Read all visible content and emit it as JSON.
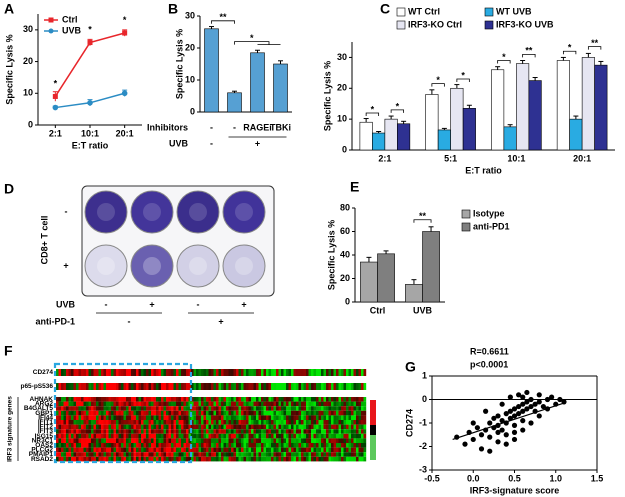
{
  "chart_data": [
    {
      "type": "line",
      "panel": "A",
      "x_label": "E:T ratio",
      "y_label": "Specific Lysis %",
      "categories": [
        "2:1",
        "10:1",
        "20:1"
      ],
      "ylim": [
        0,
        35
      ],
      "yticks": [
        0,
        10,
        20,
        30
      ],
      "series": [
        {
          "name": "Ctrl",
          "color": "#e8262b",
          "marker": "square",
          "values": [
            9,
            26,
            29
          ],
          "errors": [
            1.5,
            1,
            1
          ]
        },
        {
          "name": "UVB",
          "color": "#2b8cc4",
          "marker": "circle",
          "values": [
            5.5,
            7,
            10
          ],
          "errors": [
            0.5,
            1,
            1
          ]
        }
      ],
      "annotations": [
        "*",
        "*",
        "*"
      ]
    },
    {
      "type": "bar",
      "panel": "B",
      "y_label": "Specific Lysis %",
      "color": "#56a0d3",
      "values": [
        26,
        6,
        18.5,
        15
      ],
      "errors": [
        0.7,
        0.5,
        0.8,
        1
      ],
      "ylim": [
        0,
        30
      ],
      "yticks": [
        0,
        10,
        20,
        30
      ],
      "conditions": [
        {
          "label": "Inhibitors",
          "values": [
            "-",
            "-",
            "RAGEi",
            "TBKi"
          ]
        },
        {
          "label": "UVB",
          "values": [
            "-",
            "+"
          ]
        }
      ],
      "annotations": [
        "**",
        "*"
      ]
    },
    {
      "type": "bar",
      "panel": "C",
      "x_label": "E:T ratio",
      "y_label": "Specific Lysis %",
      "categories": [
        "2:1",
        "5:1",
        "10:1",
        "20:1"
      ],
      "ylim": [
        0,
        35
      ],
      "yticks": [
        0,
        10,
        20,
        30
      ],
      "series": [
        {
          "name": "WT Ctrl",
          "color": "#ffffff",
          "values": [
            9,
            18,
            26,
            29
          ],
          "errors": [
            1.2,
            1.5,
            1,
            1
          ]
        },
        {
          "name": "WT UVB",
          "color": "#29abe2",
          "values": [
            5.5,
            6.5,
            7.5,
            10
          ],
          "errors": [
            0.5,
            0.5,
            0.7,
            1
          ]
        },
        {
          "name": "IRF3-KO Ctrl",
          "color": "#e6e6f2",
          "values": [
            10,
            20,
            28,
            30
          ],
          "errors": [
            1,
            1.2,
            1,
            1.3
          ]
        },
        {
          "name": "IRF3-KO UVB",
          "color": "#2e3192",
          "values": [
            8.5,
            13.5,
            22.5,
            27.5
          ],
          "errors": [
            0.8,
            1,
            1,
            1.2
          ]
        }
      ],
      "annotations": [
        "*",
        "*",
        "*",
        "*",
        "*",
        "**",
        "*",
        "**"
      ]
    },
    {
      "type": "bar",
      "panel": "E",
      "y_label": "Specific Lysis %",
      "categories": [
        "Ctrl",
        "UVB"
      ],
      "ylim": [
        0,
        80
      ],
      "yticks": [
        0,
        20,
        40,
        60,
        80
      ],
      "series": [
        {
          "name": "Isotype",
          "color": "#a6a6a6",
          "values": [
            34,
            15
          ],
          "errors": [
            4,
            4
          ]
        },
        {
          "name": "anti-PD1",
          "color": "#7f7f7f",
          "values": [
            41,
            60
          ],
          "errors": [
            2.5,
            4
          ]
        }
      ],
      "annotations": [
        "**"
      ]
    },
    {
      "type": "scatter",
      "panel": "G",
      "x_label": "IRF3-signature score",
      "y_label": "CD274",
      "annotations": [
        "R=0.6611",
        "p<0.0001"
      ],
      "xlim": [
        -0.5,
        1.5
      ],
      "xticks": [
        -0.5,
        {
          "value": 0,
          "label": "0.0"
        },
        0.5,
        {
          "value": 1,
          "label": "1.0"
        },
        1.5
      ],
      "ylim": [
        -3,
        1
      ],
      "yticks": [
        -3,
        -2,
        -1,
        0,
        1
      ],
      "hline": 0,
      "color": "#000000",
      "x": [
        -0.2,
        -0.1,
        -0.05,
        0.0,
        0.05,
        0.1,
        0.1,
        0.15,
        0.2,
        0.2,
        0.25,
        0.25,
        0.3,
        0.3,
        0.3,
        0.35,
        0.35,
        0.4,
        0.4,
        0.4,
        0.45,
        0.45,
        0.5,
        0.5,
        0.5,
        0.55,
        0.55,
        0.6,
        0.6,
        0.6,
        0.65,
        0.65,
        0.7,
        0.7,
        0.75,
        0.75,
        0.8,
        0.8,
        0.85,
        0.9,
        0.9,
        0.95,
        1.0,
        1.05,
        1.1,
        0.2,
        0.3,
        0.4,
        0.5,
        0.6,
        0.7,
        0.35,
        0.45,
        0.55,
        0.65,
        0.15,
        0.8,
        0.0,
        0.5,
        0.6
      ],
      "y": [
        -1.6,
        -1.9,
        -1.4,
        -1.7,
        -1.2,
        -1.5,
        -2.1,
        -1.3,
        -1.0,
        -1.6,
        -1.2,
        -0.8,
        -1.1,
        -1.4,
        -0.7,
        -0.9,
        -1.3,
        -0.6,
        -1.0,
        -1.5,
        -0.8,
        -0.5,
        -0.7,
        -0.4,
        -1.1,
        -0.6,
        -0.3,
        -0.5,
        -0.2,
        -0.9,
        -0.4,
        -0.1,
        -0.3,
        0.0,
        -0.5,
        -0.2,
        -0.1,
        0.2,
        -0.3,
        0.0,
        -0.4,
        0.1,
        -0.2,
        0.0,
        -0.1,
        -2.2,
        -1.8,
        -1.9,
        -1.7,
        -1.3,
        -1.0,
        -0.2,
        0.1,
        0.2,
        0.3,
        -0.5,
        -0.7,
        -1.0,
        -1.4,
        0.1
      ],
      "fit": {
        "x": [
          -0.25,
          1.1
        ],
        "y": [
          -1.7,
          -0.15
        ]
      }
    }
  ],
  "panel_d": {
    "panel": "D",
    "y_label": "CD8+ T cell",
    "row_labels": [
      "-",
      "+"
    ],
    "conditions": [
      {
        "label": "UVB",
        "values": [
          "-",
          "+",
          "-",
          "+"
        ]
      },
      {
        "label": "anti-PD-1",
        "values": [
          "-",
          "+"
        ]
      }
    ]
  },
  "panel_f": {
    "panel": "F",
    "row_labels": [
      "CD274",
      "p65-pS536"
    ],
    "group_label": "IRF3 signature genes",
    "genes": [
      "AHNAK",
      "ARG2",
      "B4GALT5",
      "GBP1",
      "IFI44",
      "IFIT1",
      "IFIT2",
      "IFIT3",
      "ISG15",
      "NR3C1",
      "OAS2",
      "PLCG2",
      "PMAIP1",
      "RSAD2"
    ]
  }
}
